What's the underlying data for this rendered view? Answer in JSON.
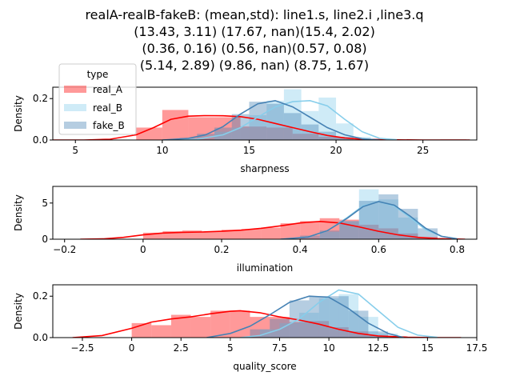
{
  "title_lines": [
    "realA-realB-fakeB: (mean,std): line1.s, line2.i ,line3.q",
    "(13.43, 3.11) (17.67, nan)(15.4, 2.02)",
    "(0.36, 0.16) (0.56, nan)(0.57, 0.08)",
    "(5.14, 2.89) (9.86, nan) (8.75, 1.67)"
  ],
  "legend": {
    "title": "type",
    "entries": [
      {
        "label": "real_A",
        "color": "#ff0000"
      },
      {
        "label": "real_B",
        "color": "#87ceeb"
      },
      {
        "label": "fake_B",
        "color": "#4682b4"
      }
    ]
  },
  "chart_data": [
    {
      "type": "area",
      "subtype": "histogram-with-kde",
      "xlabel": "sharpness",
      "ylabel": "Density",
      "xlim": [
        3.7,
        28.1
      ],
      "ylim": [
        0,
        0.255
      ],
      "xticks": [
        5,
        10,
        15,
        20,
        25
      ],
      "yticks": [
        0.0,
        0.2
      ],
      "ytick_labels": [
        "0.0",
        "0.2"
      ],
      "series": [
        {
          "name": "real_A",
          "color": "#ff0000",
          "bins": [
            [
              8.5,
              10.0,
              0.06
            ],
            [
              10.0,
              11.5,
              0.145
            ],
            [
              11.5,
              13.0,
              0.11
            ],
            [
              13.0,
              14.5,
              0.11
            ],
            [
              14.5,
              16.0,
              0.065
            ],
            [
              16.0,
              17.5,
              0.06
            ],
            [
              17.5,
              19.0,
              0.03
            ],
            [
              19.0,
              20.5,
              0.015
            ],
            [
              20.5,
              22.0,
              0.005
            ],
            [
              26.0,
              27.5,
              0.003
            ]
          ],
          "kde": [
            [
              3.7,
              0.0
            ],
            [
              5.5,
              0.0
            ],
            [
              7.0,
              0.004
            ],
            [
              8.5,
              0.025
            ],
            [
              9.5,
              0.06
            ],
            [
              10.5,
              0.1
            ],
            [
              11.5,
              0.115
            ],
            [
              12.5,
              0.118
            ],
            [
              13.5,
              0.117
            ],
            [
              14.5,
              0.113
            ],
            [
              15.5,
              0.1
            ],
            [
              16.5,
              0.08
            ],
            [
              17.5,
              0.06
            ],
            [
              18.5,
              0.04
            ],
            [
              19.5,
              0.022
            ],
            [
              20.5,
              0.01
            ],
            [
              21.5,
              0.004
            ],
            [
              23.0,
              0.001
            ],
            [
              25.0,
              0.0
            ],
            [
              26.5,
              0.0
            ],
            [
              27.7,
              0.0
            ]
          ]
        },
        {
          "name": "real_B",
          "color": "#87ceeb",
          "bins": [
            [
              13.0,
              14.0,
              0.04
            ],
            [
              14.0,
              15.0,
              0.06
            ],
            [
              15.0,
              16.0,
              0.12
            ],
            [
              16.0,
              17.0,
              0.19
            ],
            [
              17.0,
              18.0,
              0.245
            ],
            [
              18.0,
              19.0,
              0.14
            ],
            [
              19.0,
              20.0,
              0.205
            ],
            [
              20.0,
              21.0,
              0.08
            ],
            [
              21.0,
              22.0,
              0.015
            ]
          ],
          "kde": [
            [
              10.5,
              0.0
            ],
            [
              12.0,
              0.004
            ],
            [
              13.5,
              0.025
            ],
            [
              14.5,
              0.06
            ],
            [
              15.5,
              0.11
            ],
            [
              16.5,
              0.16
            ],
            [
              17.5,
              0.185
            ],
            [
              18.5,
              0.19
            ],
            [
              19.5,
              0.165
            ],
            [
              20.5,
              0.1
            ],
            [
              21.5,
              0.04
            ],
            [
              22.5,
              0.008
            ],
            [
              23.5,
              0.001
            ]
          ]
        },
        {
          "name": "fake_B",
          "color": "#4682b4",
          "bins": [
            [
              11.0,
              12.0,
              0.01
            ],
            [
              12.0,
              13.0,
              0.03
            ],
            [
              13.0,
              14.0,
              0.06
            ],
            [
              14.0,
              15.0,
              0.125
            ],
            [
              15.0,
              16.0,
              0.185
            ],
            [
              16.0,
              17.0,
              0.175
            ],
            [
              17.0,
              18.0,
              0.13
            ],
            [
              18.0,
              19.0,
              0.075
            ],
            [
              19.0,
              20.0,
              0.04
            ],
            [
              20.0,
              21.0,
              0.015
            ]
          ],
          "kde": [
            [
              10.0,
              0.0
            ],
            [
              11.5,
              0.008
            ],
            [
              12.5,
              0.025
            ],
            [
              13.5,
              0.065
            ],
            [
              14.5,
              0.125
            ],
            [
              15.5,
              0.175
            ],
            [
              16.5,
              0.19
            ],
            [
              17.5,
              0.16
            ],
            [
              18.5,
              0.11
            ],
            [
              19.5,
              0.06
            ],
            [
              20.5,
              0.025
            ],
            [
              21.5,
              0.006
            ],
            [
              22.5,
              0.0
            ]
          ]
        }
      ]
    },
    {
      "type": "area",
      "subtype": "histogram-with-kde",
      "xlabel": "illumination",
      "ylabel": "Density",
      "xlim": [
        -0.23,
        0.85
      ],
      "ylim": [
        0,
        7.3
      ],
      "xticks": [
        -0.2,
        0.0,
        0.2,
        0.4,
        0.6,
        0.8
      ],
      "yticks": [
        0,
        5
      ],
      "ytick_labels": [
        "0",
        "5"
      ],
      "series": [
        {
          "name": "real_A",
          "color": "#ff0000",
          "bins": [
            [
              0.0,
              0.05,
              0.9
            ],
            [
              0.05,
              0.1,
              1.1
            ],
            [
              0.1,
              0.15,
              1.2
            ],
            [
              0.15,
              0.2,
              1.0
            ],
            [
              0.2,
              0.25,
              1.3
            ],
            [
              0.25,
              0.3,
              1.4
            ],
            [
              0.3,
              0.35,
              1.6
            ],
            [
              0.35,
              0.4,
              2.2
            ],
            [
              0.4,
              0.45,
              2.5
            ],
            [
              0.45,
              0.5,
              2.9
            ],
            [
              0.5,
              0.55,
              2.7
            ],
            [
              0.55,
              0.6,
              2.0
            ],
            [
              0.6,
              0.65,
              1.5
            ],
            [
              0.65,
              0.7,
              0.8
            ],
            [
              0.7,
              0.75,
              0.3
            ]
          ],
          "kde": [
            [
              -0.16,
              0.0
            ],
            [
              -0.1,
              0.05
            ],
            [
              -0.05,
              0.25
            ],
            [
              0.0,
              0.6
            ],
            [
              0.05,
              0.85
            ],
            [
              0.1,
              0.95
            ],
            [
              0.15,
              1.0
            ],
            [
              0.2,
              1.1
            ],
            [
              0.25,
              1.25
            ],
            [
              0.3,
              1.5
            ],
            [
              0.35,
              1.85
            ],
            [
              0.4,
              2.25
            ],
            [
              0.45,
              2.45
            ],
            [
              0.5,
              2.25
            ],
            [
              0.55,
              1.7
            ],
            [
              0.6,
              1.1
            ],
            [
              0.65,
              0.6
            ],
            [
              0.7,
              0.25
            ],
            [
              0.75,
              0.08
            ],
            [
              0.8,
              0.02
            ],
            [
              0.82,
              0.0
            ]
          ]
        },
        {
          "name": "real_B",
          "color": "#87ceeb",
          "bins": [
            [
              0.45,
              0.5,
              1.0
            ],
            [
              0.5,
              0.55,
              2.5
            ],
            [
              0.55,
              0.6,
              6.9
            ],
            [
              0.6,
              0.65,
              5.5
            ],
            [
              0.65,
              0.7,
              3.0
            ]
          ],
          "kde": [
            [
              0.35,
              0.0
            ],
            [
              0.42,
              0.3
            ],
            [
              0.47,
              1.2
            ],
            [
              0.52,
              3.0
            ],
            [
              0.56,
              4.6
            ],
            [
              0.6,
              5.2
            ],
            [
              0.64,
              4.6
            ],
            [
              0.68,
              3.0
            ],
            [
              0.72,
              1.3
            ],
            [
              0.76,
              0.4
            ],
            [
              0.8,
              0.05
            ]
          ]
        },
        {
          "name": "fake_B",
          "color": "#4682b4",
          "bins": [
            [
              0.4,
              0.45,
              0.5
            ],
            [
              0.45,
              0.5,
              1.2
            ],
            [
              0.5,
              0.55,
              2.5
            ],
            [
              0.55,
              0.6,
              5.3
            ],
            [
              0.6,
              0.65,
              6.2
            ],
            [
              0.65,
              0.7,
              4.2
            ],
            [
              0.7,
              0.75,
              1.5
            ]
          ],
          "kde": [
            [
              0.35,
              0.0
            ],
            [
              0.42,
              0.3
            ],
            [
              0.47,
              1.2
            ],
            [
              0.52,
              2.9
            ],
            [
              0.56,
              4.5
            ],
            [
              0.6,
              5.2
            ],
            [
              0.64,
              4.7
            ],
            [
              0.68,
              3.2
            ],
            [
              0.72,
              1.5
            ],
            [
              0.76,
              0.4
            ],
            [
              0.8,
              0.05
            ]
          ]
        }
      ]
    },
    {
      "type": "area",
      "subtype": "histogram-with-kde",
      "xlabel": "quality_score",
      "ylabel": "Density",
      "xlim": [
        -4.0,
        17.5
      ],
      "ylim": [
        0,
        0.255
      ],
      "xticks": [
        -2.5,
        0.0,
        2.5,
        5.0,
        7.5,
        10.0,
        12.5,
        15.0,
        17.5
      ],
      "yticks": [
        0.0,
        0.2
      ],
      "ytick_labels": [
        "0.0",
        "0.2"
      ],
      "series": [
        {
          "name": "real_A",
          "color": "#ff0000",
          "bins": [
            [
              0.0,
              1.0,
              0.07
            ],
            [
              1.0,
              2.0,
              0.06
            ],
            [
              2.0,
              3.0,
              0.11
            ],
            [
              3.0,
              4.0,
              0.1
            ],
            [
              4.0,
              5.0,
              0.13
            ],
            [
              5.0,
              6.0,
              0.13
            ],
            [
              6.0,
              7.0,
              0.1
            ],
            [
              7.0,
              8.0,
              0.1
            ],
            [
              8.0,
              9.0,
              0.075
            ],
            [
              9.0,
              10.0,
              0.08
            ],
            [
              10.0,
              11.0,
              0.05
            ],
            [
              11.0,
              12.0,
              0.03
            ],
            [
              12.0,
              13.0,
              0.01
            ]
          ],
          "kde": [
            [
              -3.0,
              0.0
            ],
            [
              -1.5,
              0.01
            ],
            [
              0.0,
              0.045
            ],
            [
              1.0,
              0.075
            ],
            [
              2.0,
              0.09
            ],
            [
              3.0,
              0.1
            ],
            [
              4.0,
              0.115
            ],
            [
              5.0,
              0.127
            ],
            [
              5.5,
              0.13
            ],
            [
              6.5,
              0.12
            ],
            [
              7.5,
              0.1
            ],
            [
              8.5,
              0.085
            ],
            [
              9.5,
              0.065
            ],
            [
              10.5,
              0.04
            ],
            [
              11.5,
              0.02
            ],
            [
              12.5,
              0.008
            ],
            [
              14.0,
              0.002
            ],
            [
              15.5,
              0.0
            ],
            [
              16.7,
              0.0
            ]
          ]
        },
        {
          "name": "real_B",
          "color": "#87ceeb",
          "bins": [
            [
              6.5,
              7.5,
              0.04
            ],
            [
              7.5,
              8.5,
              0.07
            ],
            [
              8.5,
              9.5,
              0.12
            ],
            [
              9.5,
              10.5,
              0.19
            ],
            [
              10.5,
              11.5,
              0.21
            ],
            [
              11.5,
              12.5,
              0.1
            ],
            [
              12.5,
              13.5,
              0.02
            ]
          ],
          "kde": [
            [
              5.5,
              0.0
            ],
            [
              6.5,
              0.01
            ],
            [
              7.5,
              0.04
            ],
            [
              8.5,
              0.09
            ],
            [
              9.5,
              0.17
            ],
            [
              10.5,
              0.23
            ],
            [
              11.5,
              0.21
            ],
            [
              12.5,
              0.13
            ],
            [
              13.5,
              0.05
            ],
            [
              14.5,
              0.012
            ],
            [
              15.5,
              0.001
            ]
          ]
        },
        {
          "name": "fake_B",
          "color": "#4682b4",
          "bins": [
            [
              6.0,
              7.0,
              0.04
            ],
            [
              7.0,
              8.0,
              0.09
            ],
            [
              8.0,
              9.0,
              0.18
            ],
            [
              9.0,
              10.0,
              0.2
            ],
            [
              10.0,
              11.0,
              0.2
            ],
            [
              11.0,
              12.0,
              0.13
            ],
            [
              12.0,
              13.0,
              0.03
            ]
          ],
          "kde": [
            [
              3.8,
              0.0
            ],
            [
              5.0,
              0.02
            ],
            [
              6.0,
              0.055
            ],
            [
              7.0,
              0.11
            ],
            [
              8.0,
              0.17
            ],
            [
              9.0,
              0.2
            ],
            [
              10.0,
              0.195
            ],
            [
              11.0,
              0.14
            ],
            [
              12.0,
              0.07
            ],
            [
              13.0,
              0.02
            ],
            [
              13.8,
              0.0
            ]
          ]
        }
      ]
    }
  ]
}
